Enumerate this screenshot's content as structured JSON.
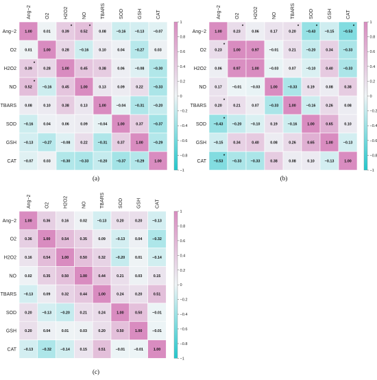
{
  "chart_data": [
    {
      "type": "heatmap",
      "caption": "(a)",
      "variables": [
        "Ang−2",
        "O2",
        "H2O2",
        "NO",
        "TBARS",
        "SOD",
        "GSH",
        "CAT"
      ],
      "matrix": [
        [
          "1.00",
          "0.01",
          "0.39",
          "0.52",
          "0.08",
          "−0.16",
          "−0.13",
          "−0.07"
        ],
        [
          "0.01",
          "1.00",
          "0.28",
          "−0.16",
          "0.10",
          "0.04",
          "−0.27",
          "0.03"
        ],
        [
          "0.39",
          "0.28",
          "1.00",
          "0.45",
          "0.38",
          "0.06",
          "−0.08",
          "−0.30"
        ],
        [
          "0.52",
          "−0.16",
          "0.45",
          "1.00",
          "0.13",
          "0.09",
          "0.22",
          "−0.33"
        ],
        [
          "0.08",
          "0.10",
          "0.38",
          "0.13",
          "1.00",
          "−0.04",
          "−0.31",
          "−0.20"
        ],
        [
          "−0.16",
          "0.04",
          "0.06",
          "0.09",
          "−0.04",
          "1.00",
          "0.37",
          "−0.37"
        ],
        [
          "−0.13",
          "−0.27",
          "−0.08",
          "0.22",
          "−0.31",
          "0.37",
          "1.00",
          "−0.29"
        ],
        [
          "−0.07",
          "0.03",
          "−0.30",
          "−0.33",
          "−0.20",
          "−0.37",
          "−0.29",
          "1.00"
        ]
      ],
      "significant": [
        [
          0,
          2
        ],
        [
          0,
          3
        ],
        [
          2,
          0
        ],
        [
          3,
          0
        ]
      ],
      "colorbar_ticks": [
        "1",
        "0.8",
        "0.6",
        "0.4",
        "0.2",
        "0",
        "−0.2",
        "−0.4",
        "−0.6",
        "−0.8",
        "−1"
      ],
      "range": [
        -1,
        1
      ]
    },
    {
      "type": "heatmap",
      "caption": "(b)",
      "variables": [
        "Ang−2",
        "O2",
        "H2O2",
        "NO",
        "TBARS",
        "SOD",
        "GSH",
        "CAT"
      ],
      "matrix": [
        [
          "1.00",
          "0.23",
          "0.06",
          "0.17",
          "0.20",
          "−0.43",
          "−0.15",
          "−0.53"
        ],
        [
          "0.23",
          "1.00",
          "0.97",
          "−0.01",
          "0.21",
          "−0.20",
          "0.34",
          "−0.33"
        ],
        [
          "0.06",
          "0.97",
          "1.00",
          "−0.03",
          "0.07",
          "−0.10",
          "0.40",
          "−0.33"
        ],
        [
          "0.17",
          "−0.01",
          "−0.03",
          "1.00",
          "−0.33",
          "0.19",
          "0.08",
          "0.38"
        ],
        [
          "0.20",
          "0.21",
          "0.07",
          "−0.33",
          "1.00",
          "−0.16",
          "0.26",
          "0.08"
        ],
        [
          "−0.43",
          "−0.20",
          "−0.10",
          "0.19",
          "−0.16",
          "1.00",
          "0.65",
          "0.10"
        ],
        [
          "−0.15",
          "0.34",
          "0.40",
          "0.08",
          "0.26",
          "0.65",
          "1.00",
          "−0.13"
        ],
        [
          "−0.53",
          "−0.33",
          "−0.33",
          "0.38",
          "0.08",
          "0.10",
          "−0.13",
          "1.00"
        ]
      ],
      "significant": [
        [
          0,
          1
        ],
        [
          0,
          4
        ],
        [
          0,
          5
        ],
        [
          0,
          7
        ],
        [
          1,
          0
        ],
        [
          4,
          0
        ],
        [
          5,
          0
        ],
        [
          7,
          0
        ]
      ],
      "colorbar_ticks": [
        "1",
        "0.8",
        "0.6",
        "0.4",
        "0.2",
        "0",
        "−0.2",
        "−0.4",
        "−0.6",
        "−0.8",
        "−1"
      ],
      "range": [
        -1,
        1
      ]
    },
    {
      "type": "heatmap",
      "caption": "(c)",
      "variables": [
        "Ang−2",
        "O2",
        "H2O2",
        "NO",
        "TBARS",
        "SOD",
        "GSH",
        "CAT"
      ],
      "matrix": [
        [
          "1.00",
          "0.36",
          "0.16",
          "0.02",
          "−0.13",
          "0.20",
          "0.20",
          "−0.13"
        ],
        [
          "0.36",
          "1.00",
          "0.54",
          "0.35",
          "0.09",
          "−0.13",
          "0.04",
          "−0.32"
        ],
        [
          "0.16",
          "0.54",
          "1.00",
          "0.50",
          "0.32",
          "−0.20",
          "0.01",
          "−0.14"
        ],
        [
          "0.02",
          "0.35",
          "0.50",
          "1.00",
          "0.44",
          "0.21",
          "0.03",
          "0.15"
        ],
        [
          "−0.13",
          "0.09",
          "0.32",
          "0.44",
          "1.00",
          "0.24",
          "0.20",
          "0.51"
        ],
        [
          "0.20",
          "−0.13",
          "−0.20",
          "0.21",
          "0.24",
          "1.00",
          "0.50",
          "−0.01"
        ],
        [
          "0.20",
          "0.04",
          "0.01",
          "0.03",
          "0.20",
          "0.50",
          "1.00",
          "−0.01"
        ],
        [
          "−0.13",
          "−0.32",
          "−0.14",
          "0.15",
          "0.51",
          "−0.01",
          "−0.01",
          "1.00"
        ]
      ],
      "significant": [],
      "colorbar_ticks": [
        "1",
        "0.8",
        "0.6",
        "0.4",
        "0.2",
        "0",
        "−0.2",
        "−0.4",
        "−0.6",
        "−0.8",
        "−1"
      ],
      "range": [
        -1,
        1
      ]
    }
  ],
  "colors": {
    "negative": "#22c7cc",
    "neutral": "#eef4f6",
    "positive": "#d98cc0"
  },
  "star_symbol": "*"
}
